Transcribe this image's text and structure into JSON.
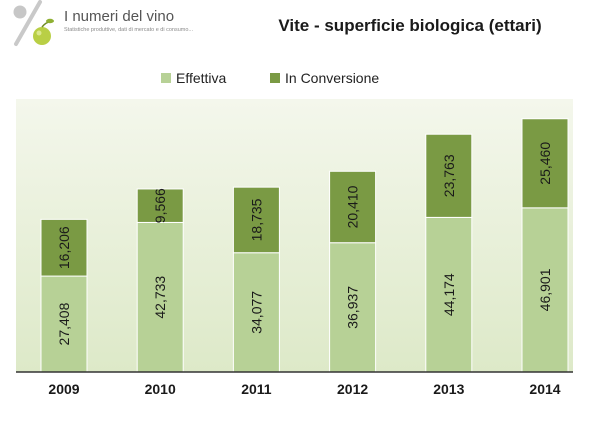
{
  "logo": {
    "title": "I numeri del vino",
    "subtitle": "Statistiche produttive, dati di mercato e di consumo..."
  },
  "colors": {
    "effettiva": "#b7d196",
    "conversione": "#7a9a44",
    "axis": "#333333",
    "bar_border": "#ffffff"
  },
  "chart_data": {
    "type": "bar",
    "stacked": true,
    "title": "Vite - superficie biologica (ettari)",
    "xlabel": "",
    "ylabel": "",
    "ylim": [
      0,
      78000
    ],
    "grid": false,
    "legend_position": "top",
    "categories": [
      "2009",
      "2010",
      "2011",
      "2012",
      "2013",
      "2014"
    ],
    "series": [
      {
        "name": "Effettiva",
        "values": [
          27408,
          42733,
          34077,
          36937,
          44174,
          46901
        ],
        "labels": [
          "27,408",
          "42,733",
          "34,077",
          "36,937",
          "44,174",
          "46,901"
        ]
      },
      {
        "name": "In Conversione",
        "values": [
          16206,
          9566,
          18735,
          20410,
          23763,
          25460
        ],
        "labels": [
          "16,206",
          "9,566",
          "18,735",
          "20,410",
          "23,763",
          "25,460"
        ]
      }
    ]
  }
}
